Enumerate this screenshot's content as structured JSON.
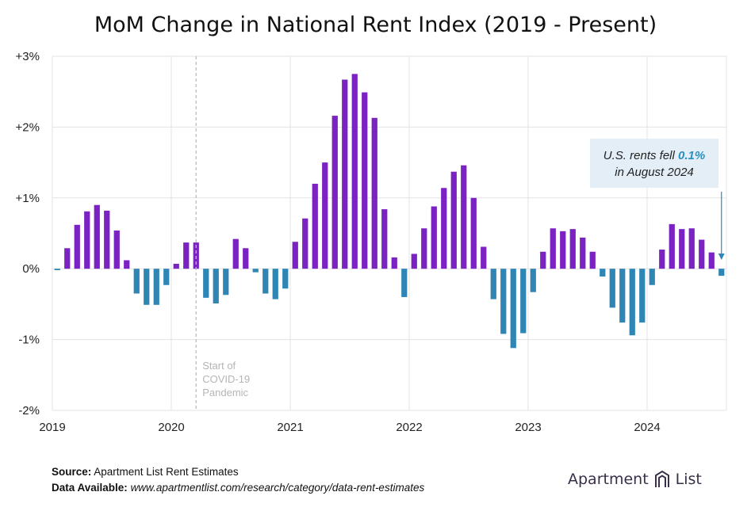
{
  "title": "MoM Change in National Rent Index (2019 - Present)",
  "chart_data": {
    "type": "bar",
    "title": "MoM Change in National Rent Index (2019 - Present)",
    "xlabel": "",
    "ylabel": "",
    "ylim": [
      -2,
      3
    ],
    "yticks": [
      {
        "value": 3,
        "label": "+3%"
      },
      {
        "value": 2,
        "label": "+2%"
      },
      {
        "value": 1,
        "label": "+1%"
      },
      {
        "value": 0,
        "label": "0%"
      },
      {
        "value": -1,
        "label": "-1%"
      },
      {
        "value": -2,
        "label": "-2%"
      }
    ],
    "year_ticks": [
      "2019",
      "2020",
      "2021",
      "2022",
      "2023",
      "2024"
    ],
    "grid": true,
    "start_date": "2019-01",
    "positive_color": "#7b22c2",
    "negative_color": "#2f86b4",
    "values": [
      -0.02,
      0.29,
      0.62,
      0.81,
      0.9,
      0.82,
      0.54,
      0.12,
      -0.35,
      -0.51,
      -0.51,
      -0.23,
      0.07,
      0.37,
      0.37,
      -0.41,
      -0.49,
      -0.37,
      0.42,
      0.29,
      -0.05,
      -0.35,
      -0.43,
      -0.28,
      0.38,
      0.71,
      1.2,
      1.5,
      2.16,
      2.67,
      2.75,
      2.49,
      2.13,
      0.84,
      0.16,
      -0.4,
      0.21,
      0.57,
      0.88,
      1.14,
      1.37,
      1.46,
      1.0,
      0.31,
      -0.43,
      -0.92,
      -1.12,
      -0.91,
      -0.33,
      0.24,
      0.57,
      0.53,
      0.56,
      0.44,
      0.24,
      -0.11,
      -0.55,
      -0.76,
      -0.94,
      -0.76,
      -0.23,
      0.27,
      0.63,
      0.56,
      0.57,
      0.41,
      0.23,
      -0.1
    ],
    "annotations": {
      "covid_label": [
        "Start of",
        "COVID-19",
        "Pandemic"
      ],
      "callout_prefix": "U.S. rents fell ",
      "callout_value": "0.1%",
      "callout_line2": "in August 2024"
    }
  },
  "footer": {
    "source_label": "Source:",
    "source_value": "Apartment List Rent Estimates",
    "data_label": "Data Available:",
    "data_value": "www.apartmentlist.com/research/category/data-rent-estimates"
  },
  "brand": {
    "left": "Apartment",
    "right": "List"
  }
}
